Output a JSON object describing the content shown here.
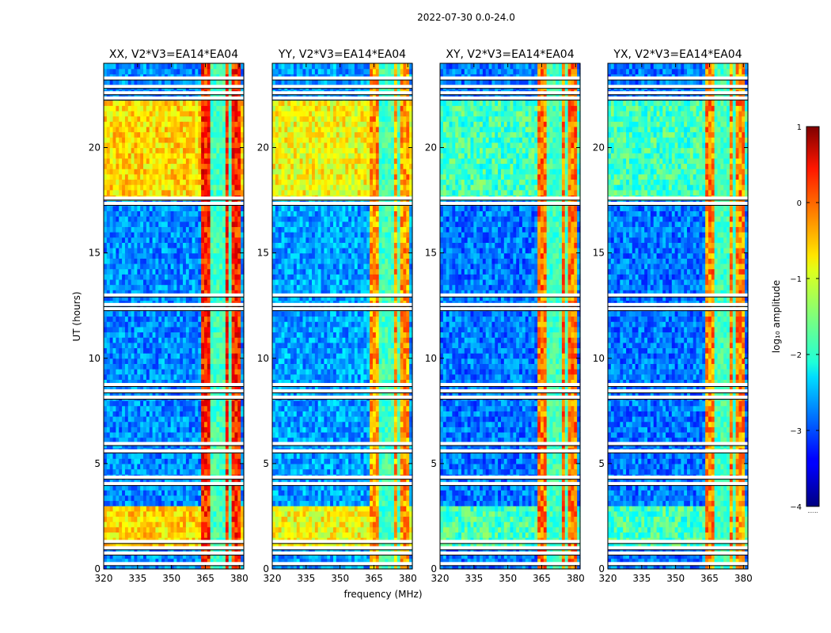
{
  "figure": {
    "suptitle": "2022-07-30 0.0-24.0",
    "ylabel": "UT (hours)",
    "xlabel": "frequency (MHz)"
  },
  "chart_data": {
    "type": "heatmap",
    "colormap": "jet",
    "x_range": [
      320,
      382
    ],
    "y_range": [
      0,
      24
    ],
    "x_ticks": [
      320,
      335,
      350,
      365,
      380
    ],
    "y_ticks": [
      0,
      5,
      10,
      15,
      20
    ],
    "panels": [
      {
        "title": "XX, V2*V3=EA14*EA04",
        "background_level": -2.7,
        "high_period_level": -0.7,
        "rfi_level": 0.2
      },
      {
        "title": "YY, V2*V3=EA14*EA04",
        "background_level": -2.6,
        "high_period_level": -0.9,
        "rfi_level": -0.4
      },
      {
        "title": "XY, V2*V3=EA14*EA04",
        "background_level": -2.8,
        "high_period_level": -1.8,
        "rfi_level": -0.2
      },
      {
        "title": "YX, V2*V3=EA14*EA04",
        "background_level": -2.8,
        "high_period_level": -1.8,
        "rfi_level": -0.3
      }
    ],
    "rfi_band_mhz": [
      363.5,
      380
    ],
    "rfi_gaps_mhz": [
      367.5,
      369.8,
      372.5,
      376.2
    ],
    "high_amplitude_periods_ut": [
      [
        17.6,
        22.2
      ],
      [
        1.1,
        3.0
      ]
    ],
    "blank_rows_ut": [
      0.25,
      0.75,
      1.0,
      1.3,
      4.05,
      4.35,
      5.6,
      5.95,
      8.15,
      8.45,
      8.75,
      12.35,
      12.55,
      13.0,
      17.35,
      17.6,
      22.35,
      22.6,
      22.9,
      23.3
    ],
    "colorbar": {
      "label": "log₁₀ amplitude",
      "range": [
        -4,
        1
      ],
      "ticks": [
        1,
        0,
        -1,
        -2,
        -3,
        -4
      ],
      "tick_labels": [
        "1",
        "0",
        "−1",
        "−2",
        "−3",
        "−4"
      ],
      "footnote": "......"
    }
  }
}
